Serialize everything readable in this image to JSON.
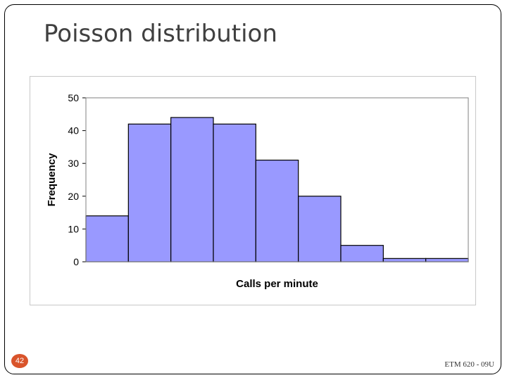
{
  "slide": {
    "title": "Poisson distribution",
    "page_number": "42",
    "footer": "ETM 620 - 09U"
  },
  "chart_data": {
    "type": "bar",
    "values": [
      14,
      42,
      44,
      42,
      31,
      20,
      5,
      1,
      1
    ],
    "xlabel": "Calls per minute",
    "ylabel": "Frequency",
    "ylim": [
      0,
      50
    ],
    "yticks": [
      0,
      10,
      20,
      30,
      40,
      50
    ],
    "grid": false,
    "bar_color": "#9999ff",
    "bar_edge_color": "#000000",
    "plot_border_color": "#808080"
  }
}
